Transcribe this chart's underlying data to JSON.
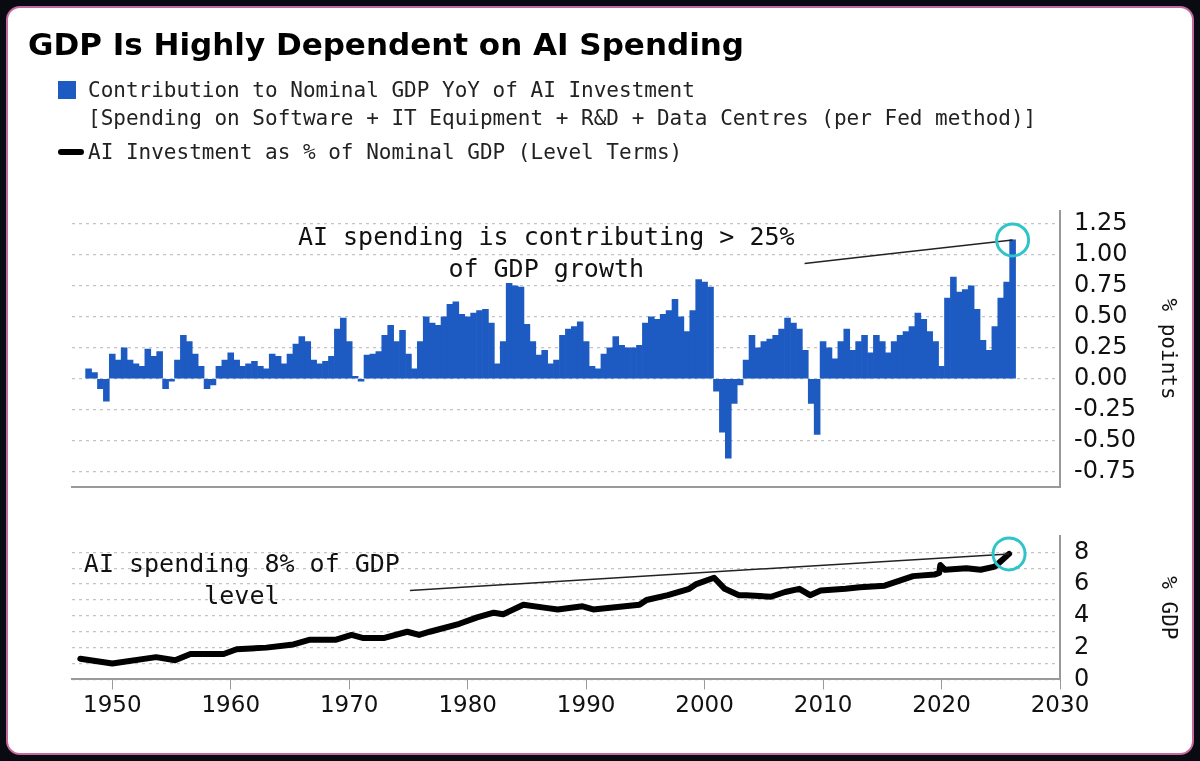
{
  "chart_data": [
    {
      "type": "bar",
      "title": "GDP Is Highly Dependent on AI Spending",
      "ylabel": "% points",
      "legend": "top left",
      "grid": "y",
      "tick_labels": "y",
      "xlim": [
        1946.6,
        2030
      ],
      "ylim": [
        -0.87,
        1.35
      ],
      "yticks": [
        {
          "value": 1.25,
          "label": "1.25"
        },
        {
          "value": 1,
          "label": "1.00"
        },
        {
          "value": 0.75,
          "label": "0.75"
        },
        {
          "value": 0.5,
          "label": "0.50"
        },
        {
          "value": 0.25,
          "label": "0.25"
        },
        {
          "value": 0,
          "label": "0.00"
        },
        {
          "value": -0.25,
          "label": "-0.25"
        },
        {
          "value": -0.5,
          "label": "-0.50"
        },
        {
          "value": -0.75,
          "label": "-0.75"
        }
      ],
      "annotations": [
        {
          "text": "AI spending is contributing > 25%\nof GDP growth",
          "x": 2026,
          "y": 1.12
        }
      ],
      "series": [
        {
          "name": "Contribution to Nominal GDP YoY of AI Investment\n[Spending on Software + IT Equipment + R&D + Data Centres (per Fed method)]",
          "color": "#1d5bc2",
          "x": [
            1948,
            1948.5,
            1949,
            1949.5,
            1950,
            1950.5,
            1951,
            1951.5,
            1952,
            1952.5,
            1953,
            1953.5,
            1954,
            1954.5,
            1955,
            1955.5,
            1956,
            1956.5,
            1957,
            1957.5,
            1958,
            1958.5,
            1959,
            1959.5,
            1960,
            1960.5,
            1961,
            1961.5,
            1962,
            1962.5,
            1963,
            1963.5,
            1964,
            1964.5,
            1965,
            1965.5,
            1966,
            1966.5,
            1967,
            1967.5,
            1968,
            1968.5,
            1969,
            1969.5,
            1970,
            1970.5,
            1971,
            1971.5,
            1972,
            1972.5,
            1973,
            1973.5,
            1974,
            1974.5,
            1975,
            1975.5,
            1976,
            1976.5,
            1977,
            1977.5,
            1978,
            1978.5,
            1979,
            1979.5,
            1980,
            1980.5,
            1981,
            1981.5,
            1982,
            1982.5,
            1983,
            1983.5,
            1984,
            1984.5,
            1985,
            1985.5,
            1986,
            1986.5,
            1987,
            1987.5,
            1988,
            1988.5,
            1989,
            1989.5,
            1990,
            1990.5,
            1991,
            1991.5,
            1992,
            1992.5,
            1993,
            1993.5,
            1994,
            1994.5,
            1995,
            1995.5,
            1996,
            1996.5,
            1997,
            1997.5,
            1998,
            1998.5,
            1999,
            1999.5,
            2000,
            2000.5,
            2001,
            2001.5,
            2002,
            2002.5,
            2003,
            2003.5,
            2004,
            2004.5,
            2005,
            2005.5,
            2006,
            2006.5,
            2007,
            2007.5,
            2008,
            2008.5,
            2009,
            2009.5,
            2010,
            2010.5,
            2011,
            2011.5,
            2012,
            2012.5,
            2013,
            2013.5,
            2014,
            2014.5,
            2015,
            2015.5,
            2016,
            2016.5,
            2017,
            2017.5,
            2018,
            2018.5,
            2019,
            2019.5,
            2020,
            2020.5,
            2021,
            2021.5,
            2022,
            2022.5,
            2023,
            2023.5,
            2024,
            2024.5,
            2025,
            2025.5,
            2026
          ],
          "values": [
            0.08,
            0.05,
            -0.08,
            -0.18,
            0.2,
            0.15,
            0.25,
            0.15,
            0.12,
            0.1,
            0.24,
            0.18,
            0.22,
            -0.08,
            -0.02,
            0.15,
            0.35,
            0.3,
            0.2,
            0.1,
            -0.08,
            -0.05,
            0.1,
            0.15,
            0.21,
            0.15,
            0.1,
            0.12,
            0.14,
            0.1,
            0.08,
            0.2,
            0.18,
            0.12,
            0.2,
            0.28,
            0.34,
            0.3,
            0.15,
            0.12,
            0.14,
            0.18,
            0.4,
            0.49,
            0.3,
            0.02,
            -0.02,
            0.19,
            0.2,
            0.22,
            0.35,
            0.43,
            0.3,
            0.39,
            0.2,
            0.08,
            0.3,
            0.5,
            0.45,
            0.43,
            0.5,
            0.6,
            0.62,
            0.52,
            0.5,
            0.53,
            0.55,
            0.56,
            0.45,
            0.12,
            0.3,
            0.77,
            0.75,
            0.74,
            0.44,
            0.3,
            0.19,
            0.23,
            0.12,
            0.15,
            0.35,
            0.4,
            0.42,
            0.46,
            0.3,
            0.1,
            0.08,
            0.2,
            0.25,
            0.34,
            0.27,
            0.25,
            0.25,
            0.27,
            0.45,
            0.5,
            0.48,
            0.52,
            0.55,
            0.64,
            0.5,
            0.38,
            0.55,
            0.8,
            0.78,
            0.74,
            -0.1,
            -0.43,
            -0.64,
            -0.2,
            -0.05,
            0.15,
            0.35,
            0.25,
            0.3,
            0.32,
            0.35,
            0.4,
            0.49,
            0.45,
            0.4,
            0.23,
            -0.2,
            -0.45,
            0.3,
            0.25,
            0.16,
            0.3,
            0.4,
            0.23,
            0.3,
            0.35,
            0.21,
            0.35,
            0.3,
            0.21,
            0.3,
            0.35,
            0.38,
            0.42,
            0.53,
            0.48,
            0.38,
            0.3,
            0.1,
            0.65,
            0.82,
            0.7,
            0.72,
            0.75,
            0.56,
            0.31,
            0.23,
            0.42,
            0.65,
            0.78,
            1.12
          ]
        }
      ]
    },
    {
      "type": "line",
      "ylabel": "% GDP",
      "legend": "top left",
      "grid": "y",
      "xlim": [
        1946.6,
        2030
      ],
      "xticks": [
        1950,
        1960,
        1970,
        1980,
        1990,
        2000,
        2010,
        2020,
        2030
      ],
      "ylim": [
        0,
        9
      ],
      "yticks": [
        0,
        {
          "value": 1,
          "label": null
        },
        2,
        {
          "value": 3,
          "label": null
        },
        4,
        {
          "value": 5,
          "label": null
        },
        6,
        {
          "value": 7,
          "label": null
        },
        8
      ],
      "annotations": [
        {
          "text": "AI spending 8% of GDP\nlevel",
          "x": 2025.7,
          "y": 7.9
        }
      ],
      "series": [
        {
          "name": "AI Investment as % of Nominal GDP (Level Terms)",
          "color": "#000000",
          "x": [
            1947.3,
            1950,
            1953.7,
            1955.3,
            1956.6,
            1959.4,
            1960.5,
            1963,
            1965.3,
            1966.7,
            1968.9,
            1970.2,
            1971.2,
            1972.9,
            1974.9,
            1975.9,
            1976.8,
            1979.3,
            1980.8,
            1982.2,
            1983,
            1984.7,
            1986.6,
            1987.6,
            1989.7,
            1990.6,
            1994.5,
            1995.1,
            1996.9,
            1998.7,
            1999.3,
            2000.8,
            2001.7,
            2002.9,
            2003.5,
            2005.6,
            2006.8,
            2008,
            2008.9,
            2009.8,
            2011.9,
            2013.1,
            2015.2,
            2017.6,
            2019.4,
            2019.8,
            2019.9,
            2020.3,
            2022.1,
            2023.3,
            2024.5,
            2025.1,
            2025.7
          ],
          "values": [
            1.3,
            1.0,
            1.4,
            1.2,
            1.6,
            1.6,
            1.9,
            2.0,
            2.2,
            2.5,
            2.5,
            2.8,
            2.6,
            2.6,
            3.0,
            2.8,
            3.0,
            3.5,
            3.9,
            4.2,
            4.1,
            4.7,
            4.5,
            4.4,
            4.6,
            4.4,
            4.7,
            5.0,
            5.3,
            5.7,
            6.0,
            6.4,
            5.7,
            5.3,
            5.3,
            5.2,
            5.5,
            5.7,
            5.3,
            5.6,
            5.7,
            5.8,
            5.9,
            6.5,
            6.6,
            6.7,
            7.2,
            6.9,
            7.0,
            6.9,
            7.1,
            7.5,
            7.9
          ]
        }
      ]
    }
  ]
}
